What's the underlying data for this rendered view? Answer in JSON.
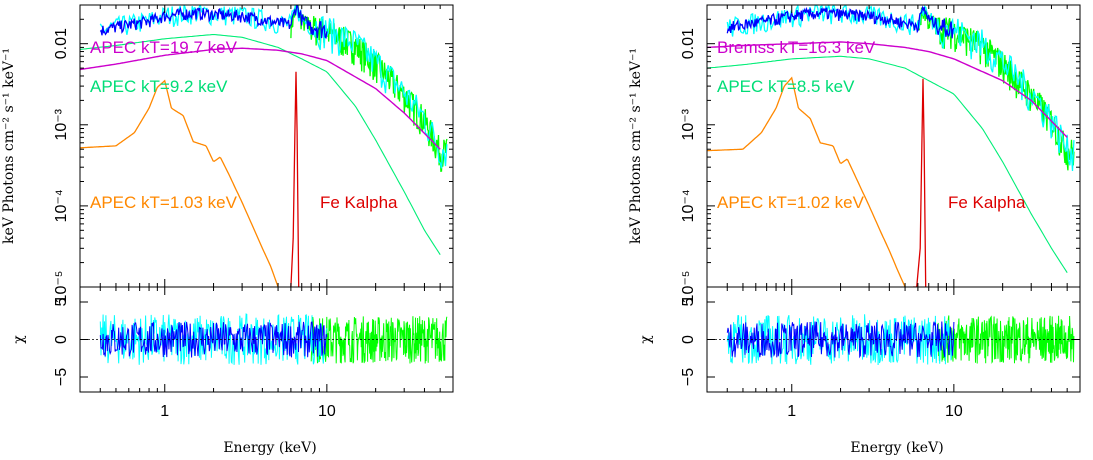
{
  "chart_data": [
    {
      "type": "line",
      "xscale": "log",
      "yscale_top": "log",
      "xlim": [
        0.3,
        60
      ],
      "ylim_top": [
        1e-05,
        0.03
      ],
      "ylim_bottom": [
        -7,
        7
      ],
      "x_ticks": [
        "1",
        "10"
      ],
      "y_ticks_top": [
        "10⁻⁵",
        "10⁻⁴",
        "10⁻³",
        "0.01"
      ],
      "y_ticks_bottom": [
        "−5",
        "0",
        "5"
      ],
      "ylabel_top": "keV Photons cm⁻² s⁻¹ keV⁻¹",
      "ylabel_bottom": "χ",
      "xlabel": "Energy (keV)",
      "grid": false,
      "colors": {
        "data1": "#00ffff",
        "data2": "#0000ff",
        "data3": "#00ff00",
        "hot": "#cc00cc",
        "warm": "#00ee77",
        "cool": "#ff8800",
        "fe": "#dd0000"
      },
      "annotations": [
        {
          "text": "APEC kT=19.7 keV",
          "color": "#cc00cc"
        },
        {
          "text": "APEC kT=9.2 keV",
          "color": "#00dd77"
        },
        {
          "text": "APEC kT=1.03 keV",
          "color": "#ff8800"
        },
        {
          "text": "Fe Kalpha",
          "color": "#dd0000"
        }
      ],
      "components": {
        "hot": {
          "x": [
            0.3,
            0.5,
            1,
            2,
            3,
            5,
            7,
            10,
            20,
            30,
            50
          ],
          "y": [
            0.0048,
            0.0056,
            0.0072,
            0.0085,
            0.0088,
            0.0083,
            0.0075,
            0.0062,
            0.0028,
            0.0014,
            0.0005
          ]
        },
        "warm": {
          "x": [
            0.3,
            0.5,
            1,
            2,
            3,
            5,
            7,
            10,
            15,
            20,
            30,
            40,
            50
          ],
          "y": [
            0.0085,
            0.0095,
            0.0115,
            0.013,
            0.012,
            0.009,
            0.0065,
            0.0045,
            0.0017,
            0.00065,
            0.00015,
            5e-05,
            2.5e-05
          ]
        },
        "cool": {
          "x": [
            0.3,
            0.5,
            0.65,
            0.8,
            0.9,
            1.0,
            1.1,
            1.3,
            1.5,
            1.8,
            2.0,
            2.2,
            2.5,
            3.0,
            3.5,
            4.0,
            4.5,
            5.0
          ],
          "y": [
            0.00052,
            0.00055,
            0.0008,
            0.0016,
            0.0029,
            0.0035,
            0.0016,
            0.0013,
            0.00062,
            0.00055,
            0.00035,
            0.0004,
            0.00024,
            0.00011,
            5.5e-05,
            3e-05,
            1.8e-05,
            1e-05
          ]
        },
        "fe": {
          "x": [
            6.0,
            6.2,
            6.35,
            6.45,
            6.55,
            6.7
          ],
          "y": [
            1e-05,
            4e-05,
            0.0008,
            0.0045,
            0.0008,
            1e-05
          ]
        },
        "data": {
          "x": [
            0.3,
            0.5,
            0.8,
            1,
            1.5,
            2,
            3,
            4,
            5,
            6,
            6.5,
            7,
            8,
            10,
            15,
            20,
            30,
            40,
            50
          ],
          "y": [
            0.013,
            0.016,
            0.019,
            0.022,
            0.024,
            0.023,
            0.022,
            0.02,
            0.018,
            0.017,
            0.03,
            0.02,
            0.017,
            0.015,
            0.01,
            0.006,
            0.0025,
            0.0012,
            0.0005
          ]
        }
      }
    },
    {
      "type": "line",
      "xscale": "log",
      "yscale_top": "log",
      "xlim": [
        0.3,
        60
      ],
      "ylim_top": [
        1e-05,
        0.03
      ],
      "ylim_bottom": [
        -7,
        7
      ],
      "x_ticks": [
        "1",
        "10"
      ],
      "y_ticks_top": [
        "10⁻⁵",
        "10⁻⁴",
        "10⁻³",
        "0.01"
      ],
      "y_ticks_bottom": [
        "−5",
        "0",
        "5"
      ],
      "ylabel_top": "keV Photons cm⁻² s⁻¹ keV⁻¹",
      "ylabel_bottom": "χ",
      "xlabel": "Energy (keV)",
      "grid": false,
      "colors": {
        "data1": "#00ffff",
        "data2": "#0000ff",
        "data3": "#00ff00",
        "hot": "#cc00cc",
        "warm": "#00ee77",
        "cool": "#ff8800",
        "fe": "#dd0000"
      },
      "annotations": [
        {
          "text": "Bremss kT=16.3 keV",
          "color": "#cc00cc"
        },
        {
          "text": "APEC kT=8.5 keV",
          "color": "#00dd77"
        },
        {
          "text": "APEC kT=1.02 keV",
          "color": "#ff8800"
        },
        {
          "text": "Fe Kalpha",
          "color": "#dd0000"
        }
      ],
      "components": {
        "hot": {
          "x": [
            0.3,
            0.5,
            1,
            2,
            3,
            5,
            7,
            10,
            20,
            30,
            50
          ],
          "y": [
            0.009,
            0.0095,
            0.01,
            0.0105,
            0.01,
            0.009,
            0.008,
            0.0065,
            0.0035,
            0.002,
            0.0007
          ]
        },
        "warm": {
          "x": [
            0.3,
            0.5,
            1,
            2,
            3,
            5,
            7,
            10,
            15,
            20,
            30,
            40,
            50
          ],
          "y": [
            0.005,
            0.0055,
            0.0065,
            0.007,
            0.0065,
            0.005,
            0.0035,
            0.0024,
            0.0009,
            0.00035,
            8e-05,
            3e-05,
            1.5e-05
          ]
        },
        "cool": {
          "x": [
            0.3,
            0.5,
            0.65,
            0.8,
            0.9,
            1.0,
            1.1,
            1.3,
            1.5,
            1.8,
            2.0,
            2.2,
            2.5,
            3.0,
            3.5,
            4.0,
            4.5,
            5.0
          ],
          "y": [
            0.00048,
            0.0005,
            0.0008,
            0.0016,
            0.003,
            0.0038,
            0.0016,
            0.0012,
            0.0006,
            0.00055,
            0.00033,
            0.00038,
            0.00022,
            0.0001,
            5e-05,
            2.8e-05,
            1.6e-05,
            1e-05
          ]
        },
        "fe": {
          "x": [
            5.6,
            5.9,
            6.2,
            6.35,
            6.45,
            6.55,
            6.7
          ],
          "y": [
            1e-05,
            1e-05,
            3e-05,
            0.0006,
            0.0037,
            0.0006,
            1e-05
          ]
        },
        "data": {
          "x": [
            0.3,
            0.5,
            0.8,
            1,
            1.5,
            2,
            3,
            4,
            5,
            6,
            6.5,
            7,
            8,
            10,
            15,
            20,
            30,
            40,
            50
          ],
          "y": [
            0.014,
            0.017,
            0.02,
            0.022,
            0.024,
            0.023,
            0.022,
            0.02,
            0.018,
            0.017,
            0.028,
            0.02,
            0.017,
            0.015,
            0.01,
            0.006,
            0.0025,
            0.0012,
            0.0005
          ]
        }
      }
    }
  ]
}
